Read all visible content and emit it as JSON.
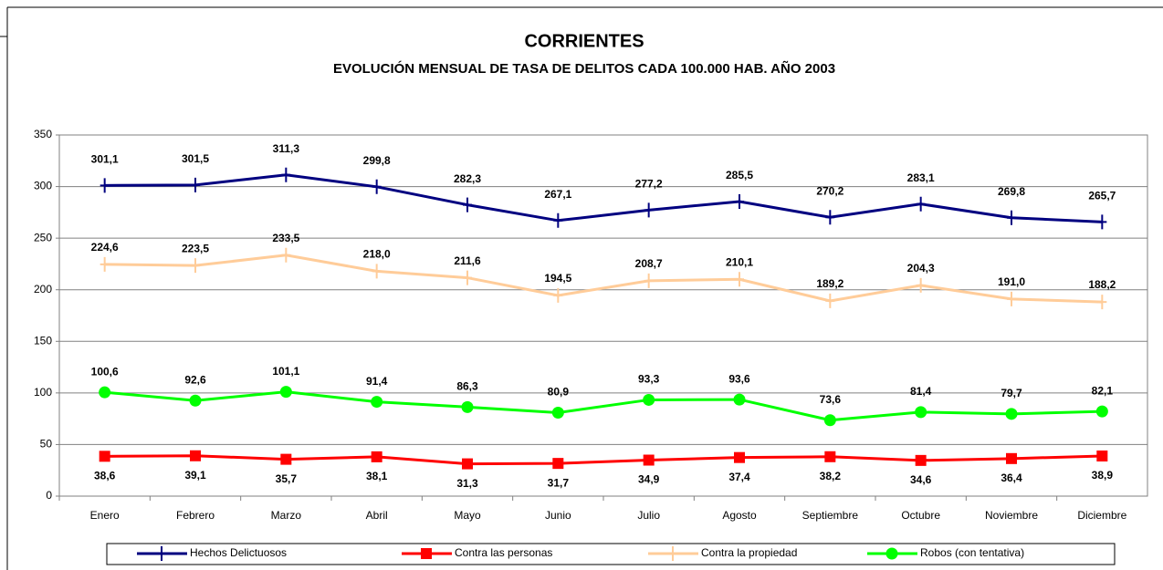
{
  "chart_data": {
    "type": "line",
    "title": "CORRIENTES",
    "subtitle": "EVOLUCIÓN MENSUAL DE TASA DE DELITOS CADA 100.000 HAB. AÑO 2003",
    "categories": [
      "Enero",
      "Febrero",
      "Marzo",
      "Abril",
      "Mayo",
      "Junio",
      "Julio",
      "Agosto",
      "Septiembre",
      "Octubre",
      "Noviembre",
      "Diciembre"
    ],
    "ylim": [
      0,
      350
    ],
    "yticks": [
      0,
      50,
      100,
      150,
      200,
      250,
      300,
      350
    ],
    "grid": true,
    "legend": "bottom",
    "series": [
      {
        "name": "Hechos Delictuosos",
        "color": "#000080",
        "values": [
          301.1,
          301.5,
          311.3,
          299.8,
          282.3,
          267.1,
          277.2,
          285.5,
          270.2,
          283.1,
          269.8,
          265.7
        ],
        "value_labels": [
          "301,1",
          "301,5",
          "311,3",
          "299,8",
          "282,3",
          "267,1",
          "277,2",
          "285,5",
          "270,2",
          "283,1",
          "269,8",
          "265,7"
        ]
      },
      {
        "name": "Contra las personas",
        "color": "#ff0000",
        "values": [
          38.6,
          39.1,
          35.7,
          38.1,
          31.3,
          31.7,
          34.9,
          37.4,
          38.2,
          34.6,
          36.4,
          38.9
        ],
        "value_labels": [
          "38,6",
          "39,1",
          "35,7",
          "38,1",
          "31,3",
          "31,7",
          "34,9",
          "37,4",
          "38,2",
          "34,6",
          "36,4",
          "38,9"
        ]
      },
      {
        "name": "Contra la propiedad",
        "color": "#ffcc99",
        "values": [
          224.6,
          223.5,
          233.5,
          218.0,
          211.6,
          194.5,
          208.7,
          210.1,
          189.2,
          204.3,
          191.0,
          188.2
        ],
        "value_labels": [
          "224,6",
          "223,5",
          "233,5",
          "218,0",
          "211,6",
          "194,5",
          "208,7",
          "210,1",
          "189,2",
          "204,3",
          "191,0",
          "188,2"
        ]
      },
      {
        "name": "Robos (con tentativa)",
        "color": "#00ff00",
        "values": [
          100.6,
          92.6,
          101.1,
          91.4,
          86.3,
          80.9,
          93.3,
          93.6,
          73.6,
          81.4,
          79.7,
          82.1
        ],
        "value_labels": [
          "100,6",
          "92,6",
          "101,1",
          "91,4",
          "86,3",
          "80,9",
          "93,3",
          "93,6",
          "73,6",
          "81,4",
          "79,7",
          "82,1"
        ]
      }
    ]
  }
}
